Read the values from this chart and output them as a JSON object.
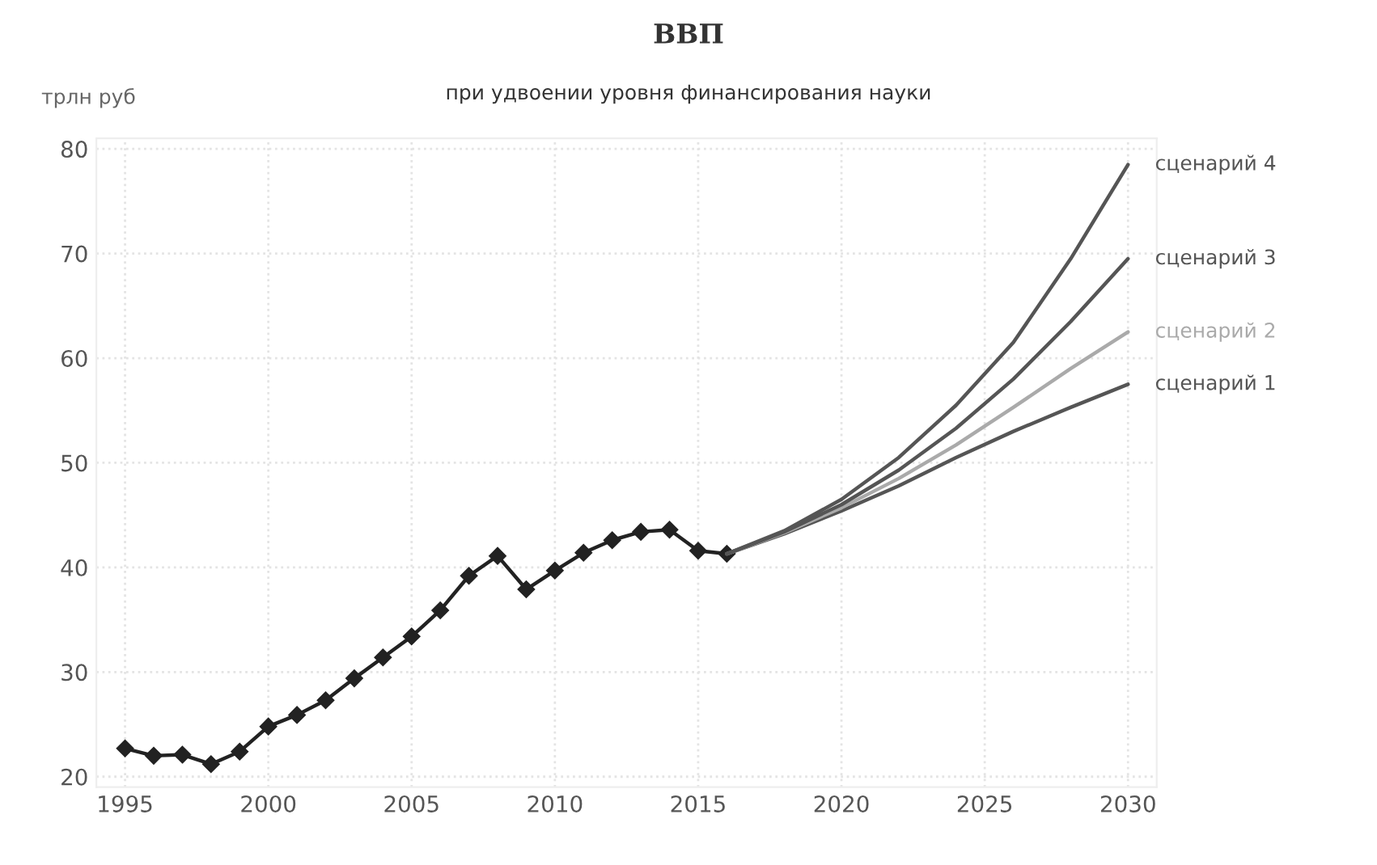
{
  "chart_data": {
    "type": "line",
    "title": "ВВП",
    "subtitle": "при удвоении уровня финансирования науки",
    "ylabel": "трлн руб",
    "xlim": [
      1994,
      2031
    ],
    "ylim": [
      19,
      81
    ],
    "xticks": [
      1995,
      2000,
      2005,
      2010,
      2015,
      2020,
      2025,
      2030
    ],
    "yticks": [
      20,
      30,
      40,
      50,
      60,
      70,
      80
    ],
    "grid": true,
    "legend": false,
    "line_style": "solid",
    "series": [
      {
        "color": "#222222",
        "marker": "diamond",
        "x": [
          1995,
          1996,
          1997,
          1998,
          1999,
          2000,
          2001,
          2002,
          2003,
          2004,
          2005,
          2006,
          2007,
          2008,
          2009,
          2010,
          2011,
          2012,
          2013,
          2014,
          2015,
          2016
        ],
        "values": [
          22.7,
          22.0,
          22.1,
          21.2,
          22.4,
          24.8,
          25.9,
          27.3,
          29.4,
          31.4,
          33.4,
          35.9,
          39.2,
          41.1,
          37.9,
          39.7,
          41.4,
          42.6,
          43.4,
          43.6,
          41.6,
          41.3
        ]
      },
      {
        "name": "сценарий 1",
        "color": "#555555",
        "marker": "none",
        "x": [
          2016,
          2018,
          2020,
          2022,
          2024,
          2026,
          2028,
          2030
        ],
        "values": [
          41.3,
          43.2,
          45.4,
          47.8,
          50.5,
          53.0,
          55.3,
          57.5
        ]
      },
      {
        "name": "сценарий 2",
        "color": "#aaaaaa",
        "marker": "none",
        "x": [
          2016,
          2018,
          2020,
          2022,
          2024,
          2026,
          2028,
          2030
        ],
        "values": [
          41.3,
          43.3,
          45.7,
          48.5,
          51.7,
          55.3,
          59.0,
          62.5
        ]
      },
      {
        "name": "сценарий 3",
        "color": "#555555",
        "marker": "none",
        "x": [
          2016,
          2018,
          2020,
          2022,
          2024,
          2026,
          2028,
          2030
        ],
        "values": [
          41.3,
          43.4,
          46.0,
          49.3,
          53.3,
          58.0,
          63.5,
          69.5
        ]
      },
      {
        "name": "сценарий 4",
        "color": "#555555",
        "marker": "none",
        "x": [
          2016,
          2018,
          2020,
          2022,
          2024,
          2026,
          2028,
          2030
        ],
        "values": [
          41.3,
          43.5,
          46.5,
          50.5,
          55.5,
          61.5,
          69.5,
          78.5
        ]
      }
    ]
  }
}
